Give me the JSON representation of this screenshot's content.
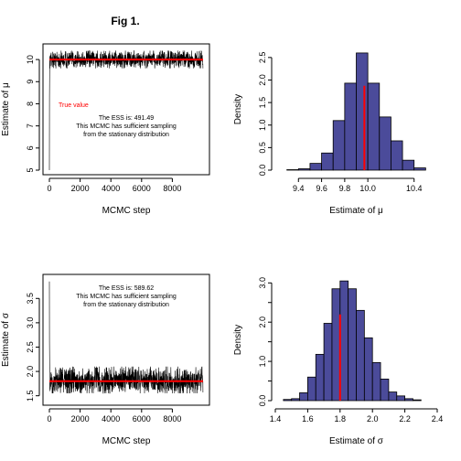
{
  "figure": {
    "title": "Fig 1."
  },
  "colors": {
    "trace": "#000000",
    "true_line": "#ff0000",
    "bar_fill": "#4b4b9a",
    "bar_stroke": "#000000"
  },
  "chart_data": [
    {
      "type": "line",
      "panel": "trace-mu",
      "xlabel": "MCMC step",
      "ylabel": "Estimate of μ",
      "xlim": [
        0,
        10000
      ],
      "ylim": [
        5,
        10.5
      ],
      "xticks": [
        0,
        2000,
        4000,
        6000,
        8000
      ],
      "yticks": [
        5,
        6,
        7,
        8,
        9,
        10
      ],
      "trace": {
        "n": 10000,
        "start_values": [
          5.0,
          8.3,
          9.6
        ],
        "center": 10.0,
        "spread_low": 9.6,
        "spread_high": 10.4
      },
      "true_value": 10.0,
      "true_value_label": "True value",
      "annotation": [
        "The ESS is:  491.49",
        "This MCMC has sufficient sampling",
        "from the stationary distribution"
      ],
      "grid": false
    },
    {
      "type": "bar",
      "panel": "hist-mu",
      "xlabel": "Estimate of μ",
      "ylabel": "Density",
      "xlim": [
        9.2,
        10.6
      ],
      "ylim": [
        0,
        2.7
      ],
      "xticks": [
        9.4,
        9.6,
        9.8,
        10.0,
        10.4
      ],
      "yticks": [
        0.0,
        0.5,
        1.0,
        1.5,
        2.0,
        2.5
      ],
      "bin_edges": [
        9.3,
        9.4,
        9.5,
        9.6,
        9.7,
        9.8,
        9.9,
        10.0,
        10.1,
        10.2,
        10.3,
        10.4,
        10.5
      ],
      "values": [
        0.01,
        0.03,
        0.15,
        0.38,
        1.1,
        1.93,
        2.6,
        1.93,
        1.18,
        0.65,
        0.22,
        0.05
      ],
      "true_value": 9.97,
      "grid": false
    },
    {
      "type": "line",
      "panel": "trace-sigma",
      "xlabel": "MCMC step",
      "ylabel": "Estimate of σ",
      "xlim": [
        0,
        10000
      ],
      "ylim": [
        1.4,
        3.9
      ],
      "xticks": [
        0,
        2000,
        4000,
        6000,
        8000
      ],
      "yticks": [
        1.5,
        2.0,
        2.5,
        3.0,
        3.5
      ],
      "trace": {
        "n": 10000,
        "start_values": [
          3.85,
          2.6,
          2.1
        ],
        "center": 1.8,
        "spread_low": 1.55,
        "spread_high": 2.1
      },
      "true_value": 1.8,
      "annotation": [
        "The ESS is:  589.62",
        "This MCMC has sufficient sampling",
        "from the stationary distribution"
      ],
      "grid": false
    },
    {
      "type": "bar",
      "panel": "hist-sigma",
      "xlabel": "Estimate of σ",
      "ylabel": "Density",
      "xlim": [
        1.4,
        2.4
      ],
      "ylim": [
        0,
        3.1
      ],
      "xticks": [
        1.4,
        1.6,
        1.8,
        2.0,
        2.2,
        2.4
      ],
      "yticks": [
        0.0,
        1.0,
        2.0,
        3.0
      ],
      "yticks_minor": [
        0.5,
        1.5,
        2.5
      ],
      "bin_edges": [
        1.45,
        1.5,
        1.55,
        1.6,
        1.65,
        1.7,
        1.75,
        1.8,
        1.85,
        1.9,
        1.95,
        2.0,
        2.05,
        2.1,
        2.15,
        2.2,
        2.25,
        2.3
      ],
      "values": [
        0.03,
        0.05,
        0.2,
        0.6,
        1.18,
        1.97,
        2.85,
        3.05,
        2.85,
        2.3,
        1.6,
        0.97,
        0.55,
        0.22,
        0.12,
        0.05,
        0.02
      ],
      "true_value": 1.8,
      "grid": false
    }
  ]
}
